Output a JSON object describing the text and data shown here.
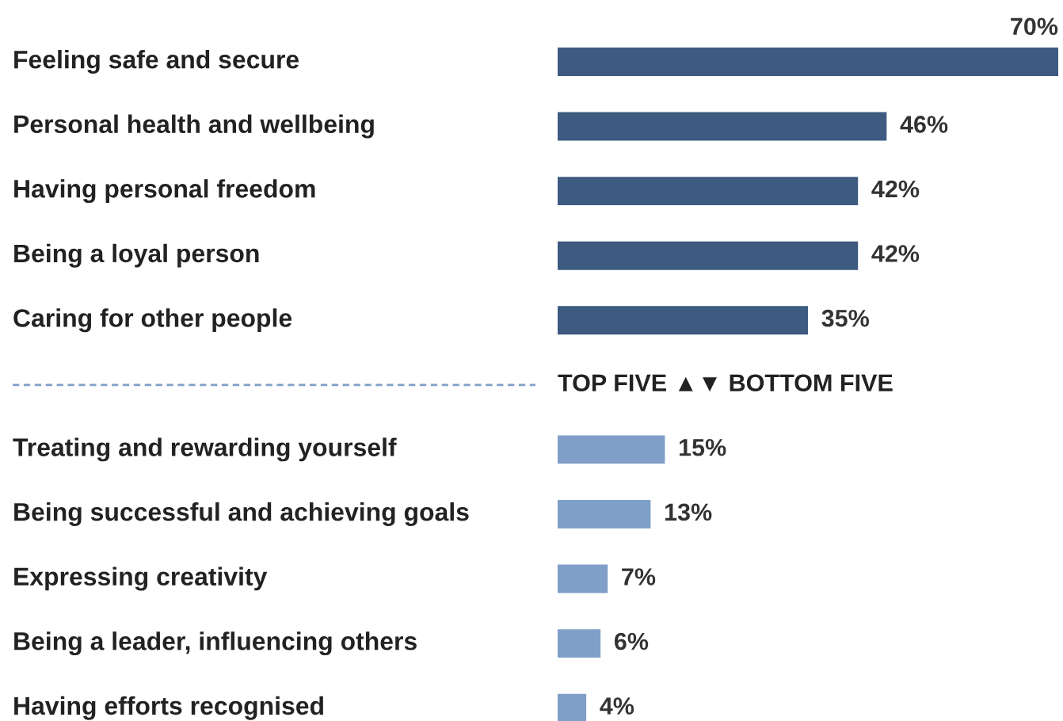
{
  "chart_data": {
    "type": "bar",
    "orientation": "horizontal",
    "categories": [
      "Feeling safe and secure",
      "Personal health and wellbeing",
      "Having personal freedom",
      "Being a loyal person",
      "Caring for other people",
      "Treating and rewarding yourself",
      "Being successful and achieving goals",
      "Expressing creativity",
      "Being a leader, influencing others",
      "Having efforts recognised"
    ],
    "values": [
      70,
      46,
      42,
      42,
      35,
      15,
      13,
      7,
      6,
      4
    ],
    "colors": [
      "#3d5a80",
      "#3d5a80",
      "#3d5a80",
      "#3d5a80",
      "#3d5a80",
      "#7f9fc8",
      "#7f9fc8",
      "#7f9fc8",
      "#7f9fc8",
      "#7f9fc8"
    ],
    "value_labels": [
      "70%",
      "46%",
      "42%",
      "42%",
      "35%",
      "15%",
      "13%",
      "7%",
      "6%",
      "4%"
    ],
    "annotations": [
      "TOP FIVE ▲▼ BOTTOM FIVE"
    ]
  }
}
